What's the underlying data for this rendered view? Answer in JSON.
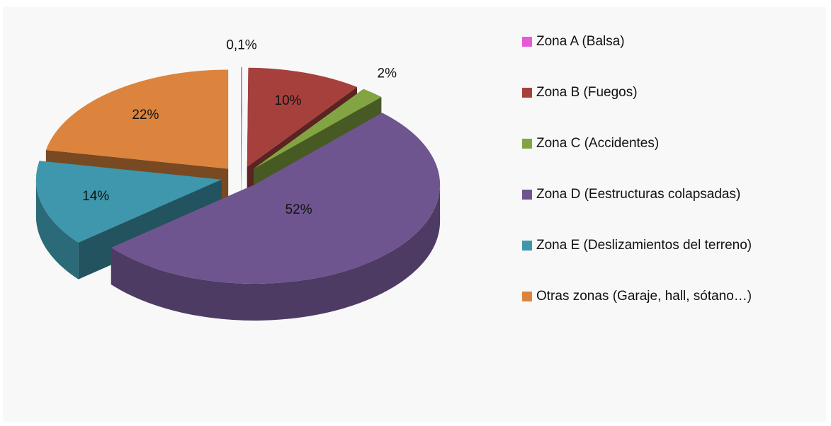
{
  "chart_data": {
    "type": "pie",
    "categories": [
      "Zona A (Balsa)",
      "Zona B (Fuegos)",
      "Zona C (Accidentes)",
      "Zona D (Eestructuras colapsadas)",
      "Zona E (Deslizamientos del terreno)",
      "Otras zonas (Garaje, hall, sótano…)"
    ],
    "values": [
      0.1,
      10,
      2,
      52,
      14,
      22
    ],
    "value_labels": [
      "0,1%",
      "10%",
      "2%",
      "52%",
      "14%",
      "22%"
    ],
    "colors": [
      "#e75ad6",
      "#a5403d",
      "#83a442",
      "#6f558f",
      "#3e97ac",
      "#dc843d"
    ],
    "legend": "right"
  }
}
